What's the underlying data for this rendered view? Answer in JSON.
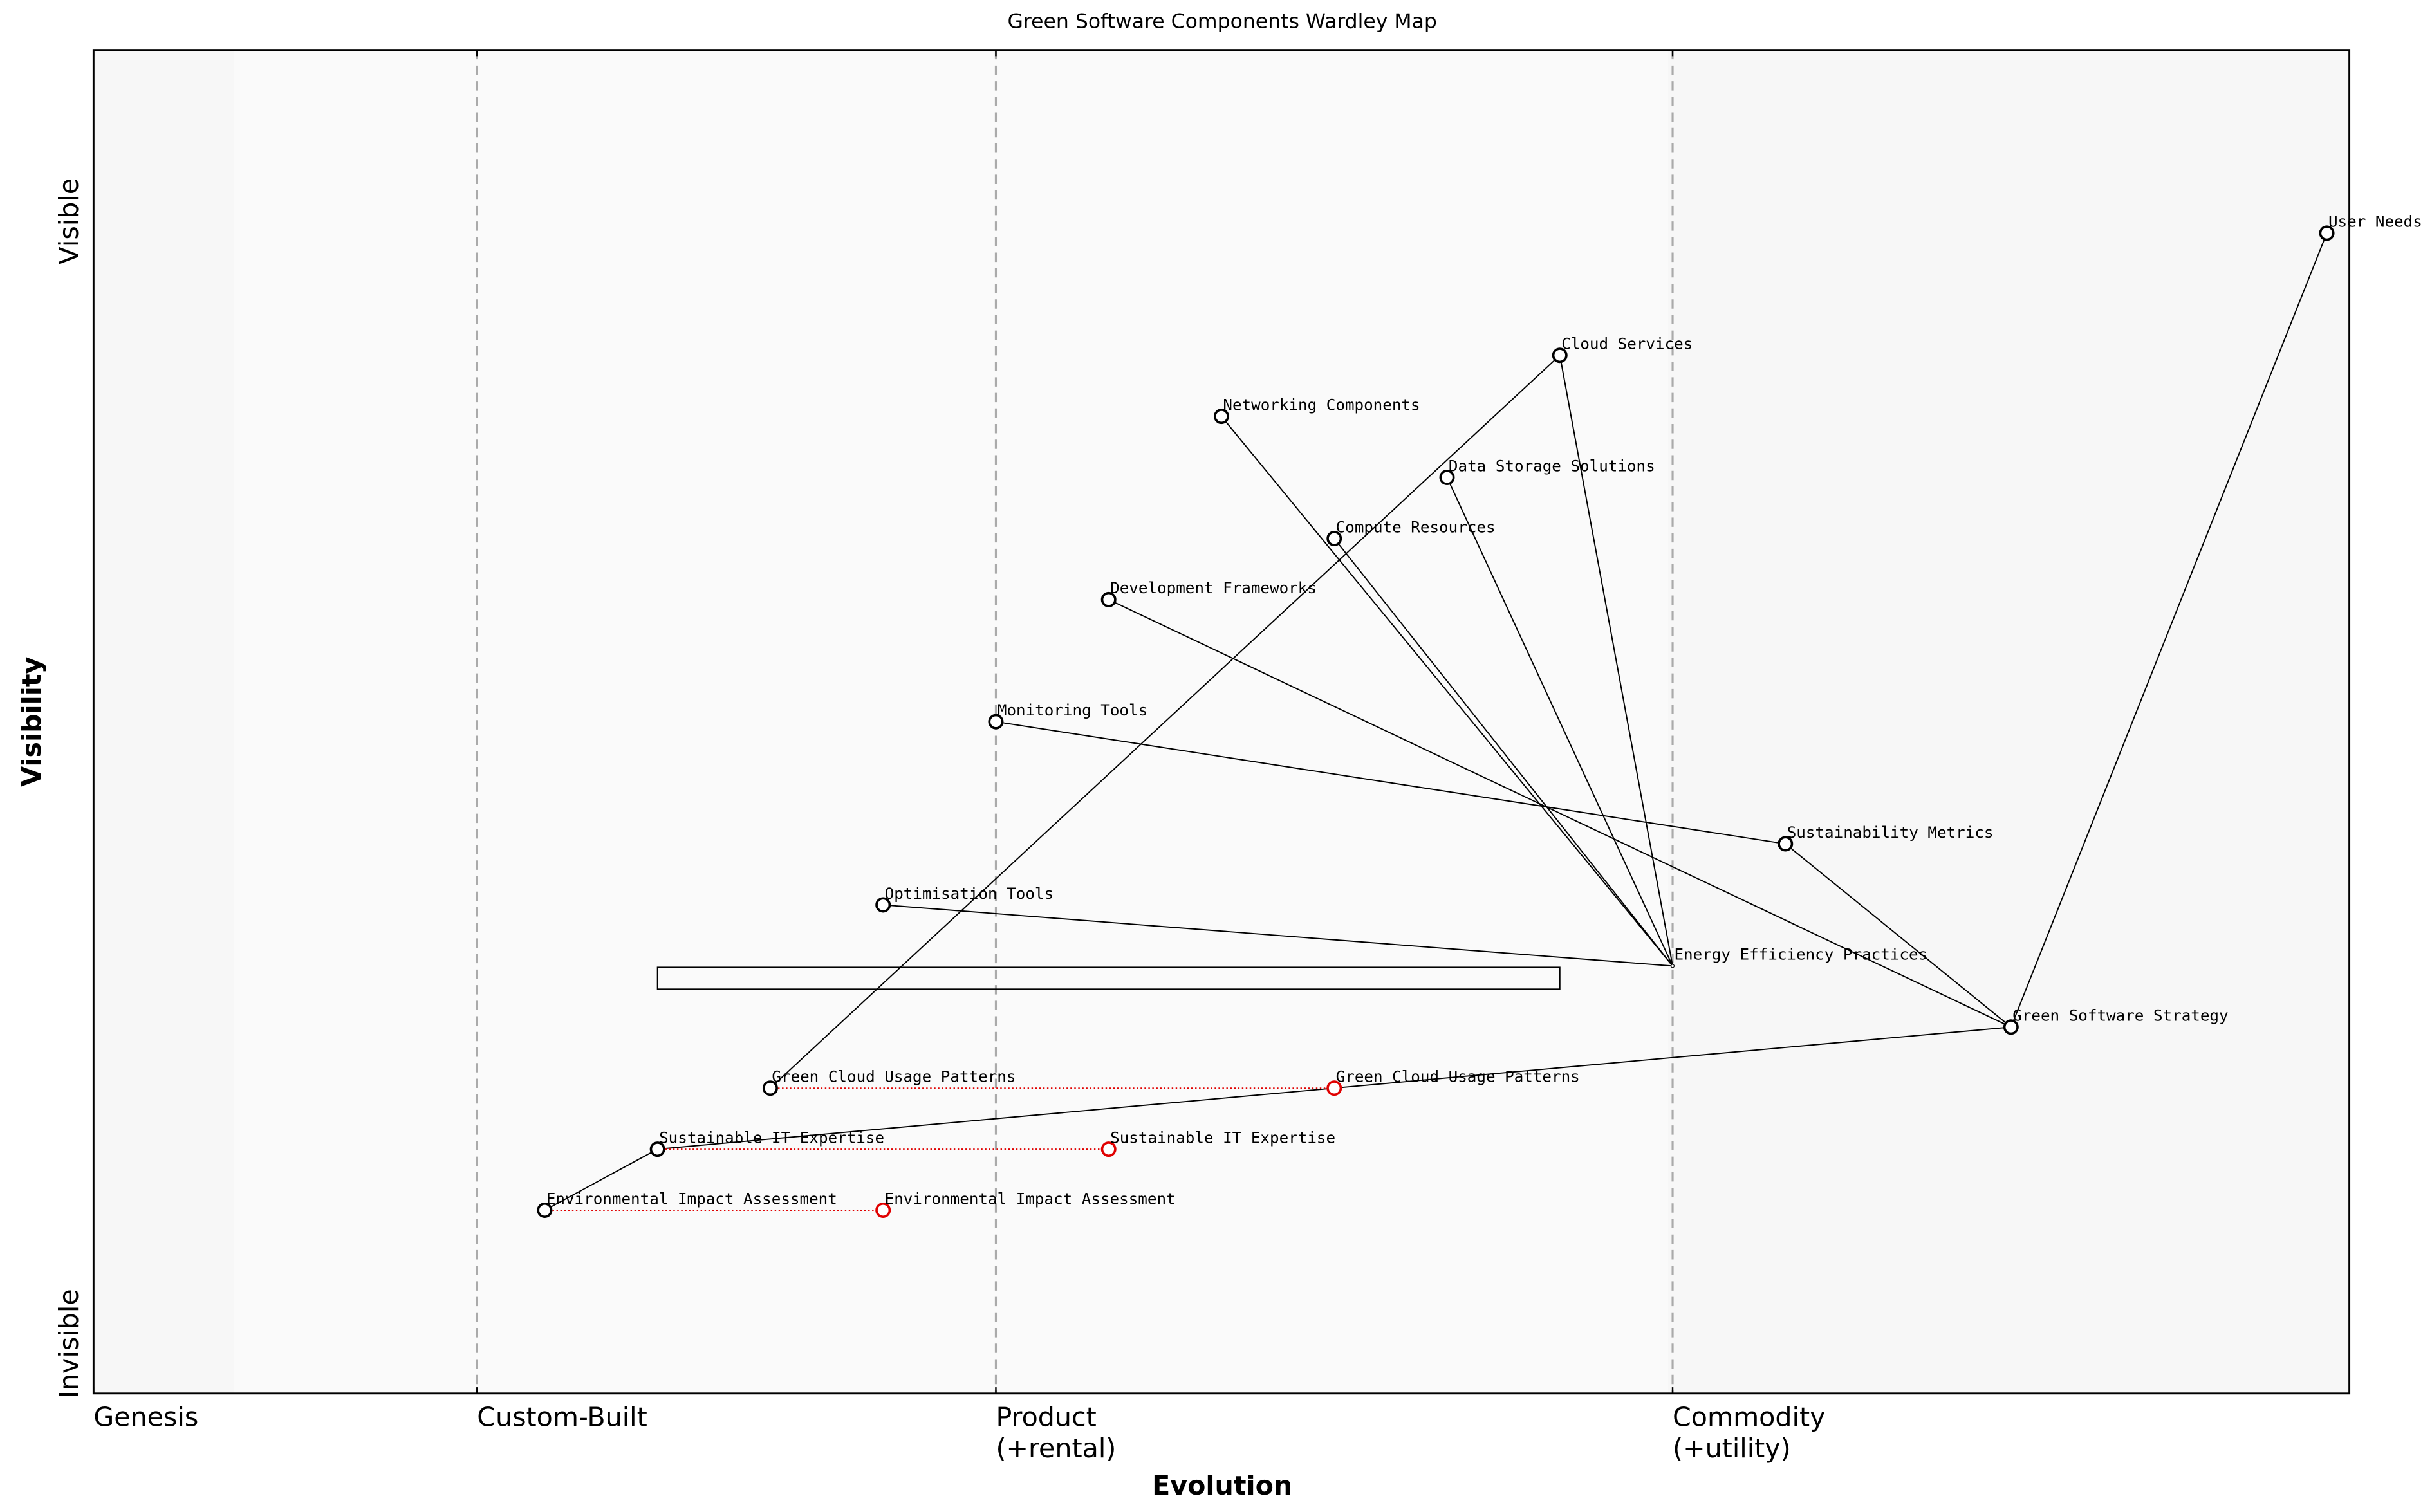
{
  "chart_data": {
    "type": "wardley",
    "title": "Green Software Components Wardley Map",
    "x_label": "Evolution",
    "y_label": "Visibility",
    "y_top_label": "Visible",
    "y_bottom_label": "Invisible",
    "xlim": [
      0,
      1
    ],
    "ylim": [
      0,
      1.1
    ],
    "xticks": [
      {
        "value": 0,
        "label": [
          "Genesis"
        ]
      },
      {
        "value": 0.17,
        "label": [
          "Custom-Built"
        ]
      },
      {
        "value": 0.4,
        "label": [
          "Product",
          "(+rental)"
        ]
      },
      {
        "value": 0.7,
        "label": [
          "Commodity",
          "(+utility)"
        ]
      }
    ],
    "components": [
      {
        "name": "User Needs",
        "evolution": 0.99,
        "visibility": 0.95
      },
      {
        "name": "Cloud Services",
        "evolution": 0.65,
        "visibility": 0.85
      },
      {
        "name": "Networking Components",
        "evolution": 0.5,
        "visibility": 0.8
      },
      {
        "name": "Data Storage Solutions",
        "evolution": 0.6,
        "visibility": 0.75
      },
      {
        "name": "Compute Resources",
        "evolution": 0.55,
        "visibility": 0.7
      },
      {
        "name": "Development Frameworks",
        "evolution": 0.45,
        "visibility": 0.65
      },
      {
        "name": "Monitoring Tools",
        "evolution": 0.4,
        "visibility": 0.55
      },
      {
        "name": "Sustainability Metrics",
        "evolution": 0.75,
        "visibility": 0.45
      },
      {
        "name": "Optimisation Tools",
        "evolution": 0.35,
        "visibility": 0.4
      },
      {
        "name": "Energy Efficiency Practices",
        "evolution": 0.7,
        "visibility": 0.35
      },
      {
        "name": "Green Software Strategy",
        "evolution": 0.85,
        "visibility": 0.3
      },
      {
        "name": "Green Cloud Usage Patterns",
        "evolution": 0.3,
        "visibility": 0.25
      },
      {
        "name": "Sustainable IT Expertise",
        "evolution": 0.25,
        "visibility": 0.2
      },
      {
        "name": "Environmental Impact Assessment",
        "evolution": 0.2,
        "visibility": 0.15
      }
    ],
    "links": [
      [
        "User Needs",
        "Green Software Strategy"
      ],
      [
        "Green Software Strategy",
        "Sustainability Metrics"
      ],
      [
        "Green Software Strategy",
        "Development Frameworks"
      ],
      [
        "Green Software Strategy",
        "Sustainable IT Expertise"
      ],
      [
        "Sustainability Metrics",
        "Monitoring Tools"
      ],
      [
        "Energy Efficiency Practices",
        "Optimisation Tools"
      ],
      [
        "Energy Efficiency Practices",
        "Cloud Services"
      ],
      [
        "Energy Efficiency Practices",
        "Networking Components"
      ],
      [
        "Energy Efficiency Practices",
        "Compute Resources"
      ],
      [
        "Energy Efficiency Practices",
        "Data Storage Solutions"
      ],
      [
        "Cloud Services",
        "Green Cloud Usage Patterns"
      ],
      [
        "Sustainable IT Expertise",
        "Environmental Impact Assessment"
      ]
    ],
    "evolutions": [
      {
        "name": "Green Cloud Usage Patterns",
        "evolution": 0.55,
        "color": "#e00000"
      },
      {
        "name": "Sustainable IT Expertise",
        "evolution": 0.45,
        "color": "#e00000"
      },
      {
        "name": "Environmental Impact Assessment",
        "evolution": 0.35,
        "color": "#e00000"
      }
    ],
    "pipeline": {
      "x_start": 0.25,
      "x_end": 0.65,
      "visibility": 0.34
    }
  }
}
